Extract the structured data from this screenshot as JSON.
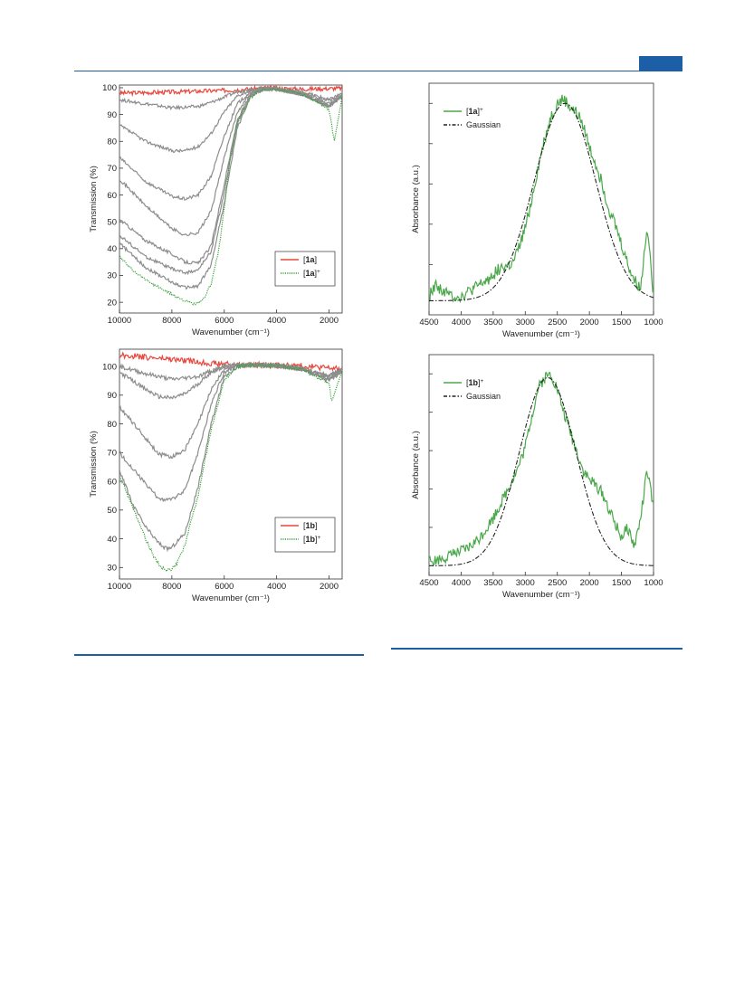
{
  "page": {
    "accent_color": "#1d5fa6"
  },
  "chart_data": [
    {
      "id": "a",
      "type": "line",
      "xlabel": "Wavenumber (cm⁻¹)",
      "ylabel": "Transmission (%)",
      "xlim": [
        10000,
        1500
      ],
      "ylim": [
        16,
        101
      ],
      "xticks": [
        10000,
        8000,
        6000,
        4000,
        2000
      ],
      "yticks": [
        20,
        30,
        40,
        50,
        60,
        70,
        80,
        90,
        100
      ],
      "legend_position": "bottom-right",
      "series": [
        {
          "name": "[1a]",
          "legend_label": "[1a]",
          "legend_sup": "",
          "color": "#e8463c",
          "style": "solid",
          "noise": 0.8,
          "x": [
            10000,
            9000,
            8000,
            7000,
            6000,
            5000,
            4500,
            4000,
            3000,
            2500,
            2000,
            1500
          ],
          "y": [
            98,
            98.2,
            98.4,
            98.7,
            99,
            99.5,
            100,
            99.8,
            99.5,
            99.6,
            99.7,
            99.8
          ]
        },
        {
          "name": "intermediate-1",
          "color": "#8d8d8d",
          "style": "solid",
          "noise": 0.6,
          "x": [
            10000,
            9000,
            8000,
            7000,
            6500,
            6000,
            5500,
            5000,
            4500,
            4000,
            3000,
            2500,
            2000,
            1500
          ],
          "y": [
            95.5,
            94,
            92.5,
            93,
            94.5,
            96.5,
            98.5,
            99.4,
            99.8,
            99.7,
            98.5,
            97,
            95.5,
            98
          ]
        },
        {
          "name": "intermediate-2",
          "color": "#8d8d8d",
          "style": "solid",
          "noise": 0.6,
          "x": [
            10000,
            9000,
            8000,
            7500,
            7000,
            6500,
            6000,
            5500,
            5000,
            4500,
            4000,
            3000,
            2000,
            1500
          ],
          "y": [
            86,
            80,
            76.5,
            76.5,
            78,
            83,
            91,
            97,
            99,
            99.6,
            99.5,
            98,
            95,
            97.5
          ]
        },
        {
          "name": "intermediate-3",
          "color": "#8d8d8d",
          "style": "solid",
          "noise": 0.6,
          "x": [
            10000,
            9000,
            8000,
            7500,
            7000,
            6500,
            6000,
            5500,
            5000,
            4500,
            4000,
            3000,
            2000,
            1500
          ],
          "y": [
            74,
            65,
            59.5,
            58.5,
            60,
            67,
            82,
            94,
            98.5,
            99.6,
            99.5,
            97.5,
            94,
            97
          ]
        },
        {
          "name": "intermediate-4",
          "color": "#8d8d8d",
          "style": "solid",
          "noise": 0.6,
          "x": [
            10000,
            9000,
            8000,
            7500,
            7000,
            6500,
            6000,
            5500,
            5000,
            4500,
            4000,
            3000,
            2000,
            1500
          ],
          "y": [
            66,
            56,
            47.5,
            45,
            46,
            54,
            74,
            91,
            98,
            99.5,
            99.5,
            97.5,
            93.5,
            97
          ]
        },
        {
          "name": "intermediate-5",
          "color": "#8d8d8d",
          "style": "solid",
          "noise": 0.6,
          "x": [
            10000,
            9000,
            8000,
            7500,
            7000,
            6500,
            6000,
            5500,
            5000,
            4500,
            4000,
            3000,
            2000,
            1500
          ],
          "y": [
            51,
            43,
            38,
            35,
            34.5,
            41,
            64,
            88,
            97.5,
            99.5,
            99.5,
            97.5,
            93,
            97
          ]
        },
        {
          "name": "intermediate-6",
          "color": "#8d8d8d",
          "style": "solid",
          "noise": 0.6,
          "x": [
            10000,
            9000,
            8000,
            7500,
            7000,
            6500,
            6000,
            5500,
            5000,
            4500,
            4000,
            3000,
            2000,
            1500
          ],
          "y": [
            45,
            37,
            32.5,
            31,
            32,
            39,
            61,
            87,
            97,
            99.5,
            99.5,
            97.5,
            93,
            97
          ]
        },
        {
          "name": "intermediate-7",
          "color": "#8d8d8d",
          "style": "solid",
          "noise": 0.6,
          "x": [
            10000,
            9000,
            8000,
            7500,
            7000,
            6500,
            6000,
            5500,
            5000,
            4500,
            4000,
            3000,
            2000,
            1500
          ],
          "y": [
            42,
            33,
            27.5,
            25.5,
            26,
            34,
            57,
            85,
            96.5,
            99.5,
            99.5,
            97.5,
            93,
            97
          ]
        },
        {
          "name": "[1a]+",
          "legend_label": "[1a]",
          "legend_sup": "+",
          "color": "#3aa13a",
          "style": "dotted",
          "noise": 0.5,
          "x": [
            10000,
            9500,
            9000,
            8500,
            8000,
            7500,
            7200,
            7000,
            6800,
            6500,
            6200,
            6000,
            5800,
            5500,
            5000,
            4500,
            4000,
            3000,
            2500,
            2000,
            1800,
            1500
          ],
          "y": [
            37,
            32,
            28.5,
            25.5,
            23,
            20.5,
            19.3,
            19.5,
            21,
            27,
            40,
            55,
            72,
            87,
            96.5,
            99.5,
            99.5,
            97.5,
            95,
            92,
            80,
            97
          ]
        }
      ]
    },
    {
      "id": "b",
      "type": "line",
      "xlabel": "Wavenumber (cm⁻¹)",
      "ylabel": "Transmission (%)",
      "xlim": [
        10000,
        1500
      ],
      "ylim": [
        26,
        106
      ],
      "xticks": [
        10000,
        8000,
        6000,
        4000,
        2000
      ],
      "yticks": [
        30,
        40,
        50,
        60,
        70,
        80,
        90,
        100
      ],
      "legend_position": "bottom-right",
      "series": [
        {
          "name": "[1b]",
          "legend_label": "[1b]",
          "legend_sup": "",
          "color": "#e8463c",
          "style": "solid",
          "noise": 1.0,
          "x": [
            10000,
            9000,
            8000,
            7000,
            6000,
            5500,
            4500,
            4000,
            3500,
            3000,
            2500,
            2000,
            1500
          ],
          "y": [
            104,
            103.2,
            102.5,
            101.5,
            100.8,
            100.5,
            100.5,
            100.3,
            100.3,
            100.2,
            99.8,
            99.5,
            99
          ]
        },
        {
          "name": "intermediate-1",
          "color": "#8d8d8d",
          "style": "solid",
          "noise": 0.7,
          "x": [
            10000,
            9000,
            8000,
            7000,
            6500,
            6000,
            5500,
            5000,
            4000,
            3000,
            2000,
            1500
          ],
          "y": [
            100,
            97.5,
            95.5,
            96.5,
            98.5,
            100,
            100.5,
            100.5,
            100.3,
            99,
            97,
            99
          ]
        },
        {
          "name": "intermediate-2",
          "color": "#8d8d8d",
          "style": "solid",
          "noise": 0.7,
          "x": [
            10000,
            9000,
            8500,
            8000,
            7500,
            7000,
            6500,
            6000,
            5500,
            5000,
            4000,
            3000,
            2000,
            1500
          ],
          "y": [
            98,
            92,
            89.5,
            89,
            90.5,
            94,
            98,
            100,
            100.5,
            100.5,
            100.3,
            99,
            96.5,
            99
          ]
        },
        {
          "name": "intermediate-3",
          "color": "#8d8d8d",
          "style": "solid",
          "noise": 0.7,
          "x": [
            10000,
            9000,
            8500,
            8000,
            7500,
            7000,
            6500,
            6000,
            5500,
            5000,
            4000,
            3000,
            2000,
            1500
          ],
          "y": [
            86,
            75,
            69.5,
            68.5,
            71,
            80,
            92,
            99,
            100.3,
            100.5,
            100.3,
            99,
            96,
            98.5
          ]
        },
        {
          "name": "intermediate-4",
          "color": "#8d8d8d",
          "style": "solid",
          "noise": 0.7,
          "x": [
            10000,
            9000,
            8500,
            8000,
            7500,
            7000,
            6500,
            6000,
            5500,
            5000,
            4000,
            3000,
            2000,
            1500
          ],
          "y": [
            70,
            59,
            54,
            53.5,
            57,
            70,
            87,
            98,
            100.2,
            100.5,
            100.3,
            99,
            95.5,
            98.5
          ]
        },
        {
          "name": "intermediate-5",
          "color": "#8d8d8d",
          "style": "solid",
          "noise": 0.7,
          "x": [
            10000,
            9500,
            9000,
            8500,
            8200,
            8000,
            7500,
            7000,
            6500,
            6000,
            5500,
            5000,
            4000,
            3000,
            2000,
            1500
          ],
          "y": [
            64,
            52,
            44,
            38.5,
            36.5,
            37,
            42,
            58,
            80,
            96.5,
            100,
            100.5,
            100.3,
            99,
            95,
            98.5
          ]
        },
        {
          "name": "[1b]+",
          "legend_label": "[1b]",
          "legend_sup": "+",
          "color": "#3aa13a",
          "style": "dotted",
          "noise": 0.6,
          "x": [
            10000,
            9500,
            9000,
            8700,
            8400,
            8200,
            8000,
            7800,
            7500,
            7000,
            6500,
            6000,
            5500,
            5000,
            4000,
            3000,
            2000,
            1900,
            1500
          ],
          "y": [
            62,
            51,
            40,
            34,
            30,
            29,
            29.5,
            31.5,
            38,
            55,
            78,
            95.5,
            100,
            100.5,
            100.3,
            99,
            94,
            88,
            98
          ]
        }
      ]
    },
    {
      "id": "c",
      "type": "line",
      "xlabel": "Wavenumber (cm⁻¹)",
      "ylabel": "Absorbance (a.u.)",
      "xlim": [
        4500,
        1000
      ],
      "ylim": [
        -0.05,
        1.1
      ],
      "xticks": [
        4500,
        4000,
        3500,
        3000,
        2500,
        2000,
        1500,
        1000
      ],
      "legend_position": "top-left",
      "series": [
        {
          "name": "[1a]+",
          "legend_label": "[1a]",
          "legend_sup": "+",
          "color": "#4aa84a",
          "style": "solid",
          "noise": 0.03,
          "x": [
            4500,
            4400,
            4200,
            4000,
            3800,
            3600,
            3400,
            3200,
            3100,
            3000,
            2900,
            2800,
            2700,
            2600,
            2500,
            2400,
            2300,
            2200,
            2100,
            2000,
            1900,
            1800,
            1700,
            1600,
            1500,
            1400,
            1300,
            1200,
            1100,
            1000
          ],
          "y": [
            0.04,
            0.1,
            0.05,
            0.04,
            0.08,
            0.12,
            0.18,
            0.2,
            0.28,
            0.38,
            0.52,
            0.68,
            0.82,
            0.93,
            1.0,
            1.02,
            0.98,
            0.95,
            0.9,
            0.78,
            0.7,
            0.6,
            0.48,
            0.4,
            0.3,
            0.2,
            0.12,
            0.08,
            0.4,
            0.05
          ]
        },
        {
          "name": "Gaussian",
          "legend_label": "Gaussian",
          "legend_sup": "",
          "color": "#222222",
          "style": "dashdot",
          "noise": 0,
          "gaussian": {
            "center": 2380,
            "sigma": 480,
            "amp": 0.98,
            "base": 0.02
          }
        }
      ]
    },
    {
      "id": "d",
      "type": "line",
      "xlabel": "Wavenumber (cm⁻¹)",
      "ylabel": "Absorbance (a.u.)",
      "xlim": [
        4500,
        1000
      ],
      "ylim": [
        -0.05,
        1.1
      ],
      "xticks": [
        4500,
        4000,
        3500,
        3000,
        2500,
        2000,
        1500,
        1000
      ],
      "legend_position": "top-left",
      "series": [
        {
          "name": "[1b]+",
          "legend_label": "[1b]",
          "legend_sup": "+",
          "color": "#4aa84a",
          "style": "solid",
          "noise": 0.03,
          "x": [
            4500,
            4300,
            4100,
            3900,
            3700,
            3500,
            3300,
            3100,
            3000,
            2900,
            2800,
            2700,
            2600,
            2500,
            2400,
            2300,
            2200,
            2100,
            2000,
            1900,
            1800,
            1700,
            1600,
            1500,
            1400,
            1300,
            1200,
            1100,
            1000
          ],
          "y": [
            0.02,
            0.04,
            0.06,
            0.09,
            0.15,
            0.25,
            0.38,
            0.52,
            0.62,
            0.78,
            0.92,
            0.98,
            1.0,
            0.92,
            0.8,
            0.7,
            0.6,
            0.5,
            0.45,
            0.42,
            0.38,
            0.3,
            0.22,
            0.15,
            0.2,
            0.1,
            0.25,
            0.5,
            0.3
          ]
        },
        {
          "name": "Gaussian",
          "legend_label": "Gaussian",
          "legend_sup": "",
          "color": "#222222",
          "style": "dashdot",
          "noise": 0,
          "gaussian": {
            "center": 2650,
            "sigma": 440,
            "amp": 0.98,
            "base": 0.0
          }
        }
      ]
    }
  ]
}
